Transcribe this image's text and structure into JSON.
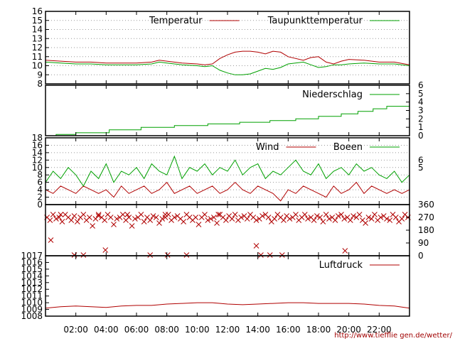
{
  "source_url": "http://www.tiefflie gen.de/wetter/",
  "colors": {
    "red": "#b00000",
    "green": "#00a000",
    "axis": "#000000"
  },
  "x_axis": {
    "range_hours": [
      0,
      24
    ],
    "tick_hours": [
      2,
      4,
      6,
      8,
      10,
      12,
      14,
      16,
      18,
      20,
      22
    ],
    "tick_labels": [
      "02:00",
      "04:00",
      "06:00",
      "08:00",
      "10:00",
      "12:00",
      "14:00",
      "16:00",
      "18:00",
      "20:00",
      "22:00"
    ]
  },
  "chart_data": [
    {
      "id": "temperature",
      "type": "line",
      "ylim": [
        8,
        16
      ],
      "y_ticks": [
        8,
        9,
        10,
        11,
        12,
        13,
        14,
        15,
        16
      ],
      "y_tick_labels": [
        "8",
        "9",
        "10",
        "11",
        "12",
        "13",
        "14",
        "15",
        "16"
      ],
      "grid": true,
      "legend_position": "top-right",
      "series": [
        {
          "name": "Temperatur",
          "color": "red",
          "x": [
            0,
            1,
            2,
            3,
            4,
            5,
            6,
            7,
            7.5,
            8,
            9,
            10,
            10.5,
            11,
            11.5,
            12,
            12.5,
            13,
            13.5,
            14,
            14.5,
            15,
            15.5,
            16,
            17,
            17.5,
            18,
            18.5,
            19,
            19.5,
            20,
            21,
            22,
            23,
            24
          ],
          "y": [
            10.6,
            10.5,
            10.4,
            10.4,
            10.3,
            10.3,
            10.3,
            10.4,
            10.6,
            10.5,
            10.3,
            10.2,
            10.1,
            10.2,
            10.8,
            11.2,
            11.5,
            11.6,
            11.6,
            11.5,
            11.3,
            11.6,
            11.5,
            11.0,
            10.6,
            10.9,
            11.0,
            10.4,
            10.2,
            10.5,
            10.7,
            10.6,
            10.4,
            10.4,
            10.1
          ]
        },
        {
          "name": "Taupunkttemperatur",
          "color": "green",
          "x": [
            0,
            1,
            2,
            3,
            4,
            5,
            6,
            7,
            7.5,
            8,
            9,
            10,
            10.5,
            11,
            11.5,
            12,
            12.5,
            13,
            13.5,
            14,
            14.5,
            15,
            15.5,
            16,
            17,
            17.5,
            18,
            18.5,
            19,
            19.5,
            20,
            21,
            22,
            23,
            24
          ],
          "y": [
            10.4,
            10.3,
            10.2,
            10.2,
            10.1,
            10.1,
            10.1,
            10.2,
            10.4,
            10.3,
            10.1,
            10.0,
            9.9,
            10.0,
            9.5,
            9.2,
            9.0,
            9.0,
            9.1,
            9.4,
            9.7,
            9.6,
            9.8,
            10.2,
            10.4,
            10.1,
            9.8,
            9.9,
            10.1,
            10.1,
            10.2,
            10.3,
            10.2,
            10.2,
            10.0
          ]
        }
      ]
    },
    {
      "id": "precipitation",
      "type": "line",
      "ylim": [
        0,
        6
      ],
      "y_ticks": [
        0,
        1,
        2,
        3,
        4,
        5,
        6
      ],
      "y_tick_labels": [
        "0",
        "1",
        "2",
        "3",
        "4",
        "5",
        "6"
      ],
      "y_axis_side": "right",
      "legend_position": "top-right",
      "series": [
        {
          "name": "Niederschlag",
          "color": "green",
          "x": [
            0,
            0.7,
            0.7,
            2,
            2,
            4.2,
            4.2,
            6.3,
            6.3,
            8.5,
            8.5,
            10.7,
            10.7,
            12.8,
            12.8,
            14.8,
            14.8,
            16.5,
            16.5,
            18.0,
            18.0,
            19.5,
            19.5,
            20.6,
            20.6,
            21.6,
            21.6,
            22.5,
            22.5,
            24
          ],
          "y": [
            0,
            0,
            0.15,
            0.15,
            0.35,
            0.35,
            0.7,
            0.7,
            1.0,
            1.0,
            1.2,
            1.2,
            1.4,
            1.4,
            1.6,
            1.6,
            1.8,
            1.8,
            2.0,
            2.0,
            2.3,
            2.3,
            2.6,
            2.6,
            2.9,
            2.9,
            3.2,
            3.2,
            3.5,
            3.5
          ]
        }
      ]
    },
    {
      "id": "wind",
      "type": "line",
      "ylim": [
        0,
        18
      ],
      "y_ticks": [
        0,
        2,
        4,
        6,
        8,
        10,
        12,
        14,
        16,
        18
      ],
      "y_tick_labels": [
        "0",
        "2",
        "4",
        "6",
        "8",
        "10",
        "12",
        "14",
        "16",
        "18"
      ],
      "right_y_tick_values": [
        5,
        6
      ],
      "right_y_tick_labels": [
        "5",
        "6"
      ],
      "grid": true,
      "legend_position": "top-right",
      "series": [
        {
          "name": "Wind",
          "color": "red",
          "x": [
            0,
            0.5,
            1,
            1.5,
            2,
            2.5,
            3,
            3.5,
            4,
            4.5,
            5,
            5.5,
            6,
            6.5,
            7,
            7.5,
            8,
            8.5,
            9,
            9.5,
            10,
            10.5,
            11,
            11.5,
            12,
            12.5,
            13,
            13.5,
            14,
            14.5,
            15,
            15.5,
            16,
            16.5,
            17,
            17.5,
            18,
            18.5,
            19,
            19.5,
            20,
            20.5,
            21,
            21.5,
            22,
            22.5,
            23,
            23.5,
            24
          ],
          "y": [
            4,
            3,
            5,
            4,
            3,
            5,
            4,
            3,
            4,
            2,
            5,
            3,
            4,
            5,
            3,
            4,
            6,
            3,
            4,
            5,
            3,
            4,
            5,
            3,
            4,
            6,
            4,
            3,
            5,
            4,
            3,
            1,
            4,
            3,
            5,
            4,
            3,
            2,
            5,
            3,
            4,
            6,
            3,
            5,
            4,
            3,
            4,
            3,
            4
          ]
        },
        {
          "name": "Boeen",
          "color": "green",
          "x": [
            0,
            0.5,
            1,
            1.5,
            2,
            2.5,
            3,
            3.5,
            4,
            4.5,
            5,
            5.5,
            6,
            6.5,
            7,
            7.5,
            8,
            8.5,
            9,
            9.5,
            10,
            10.5,
            11,
            11.5,
            12,
            12.5,
            13,
            13.5,
            14,
            14.5,
            15,
            15.5,
            16,
            16.5,
            17,
            17.5,
            18,
            18.5,
            19,
            19.5,
            20,
            20.5,
            21,
            21.5,
            22,
            22.5,
            23,
            23.5,
            24
          ],
          "y": [
            6,
            9,
            7,
            10,
            8,
            5,
            9,
            7,
            11,
            6,
            9,
            8,
            10,
            7,
            11,
            9,
            8,
            13,
            7,
            10,
            9,
            11,
            8,
            10,
            9,
            12,
            8,
            10,
            11,
            7,
            9,
            8,
            10,
            12,
            9,
            8,
            11,
            7,
            9,
            10,
            8,
            11,
            9,
            10,
            8,
            7,
            9,
            6,
            8
          ]
        }
      ]
    },
    {
      "id": "wind_direction",
      "type": "scatter",
      "ylim": [
        0,
        360
      ],
      "y_ticks": [
        0,
        90,
        180,
        270,
        360
      ],
      "y_tick_labels": [
        "0",
        "90",
        "180",
        "270",
        "360"
      ],
      "y_axis_side": "right",
      "marker": "x",
      "series": [
        {
          "name": "",
          "color": "red",
          "x": [
            0.1,
            0.3,
            0.5,
            0.7,
            0.9,
            1.1,
            1.3,
            1.5,
            1.7,
            1.9,
            2.1,
            2.3,
            2.5,
            2.7,
            2.9,
            3.1,
            3.3,
            3.5,
            3.7,
            3.9,
            4.1,
            4.3,
            4.5,
            4.7,
            4.9,
            5.1,
            5.3,
            5.5,
            5.7,
            5.9,
            6.1,
            6.3,
            6.5,
            6.7,
            6.9,
            7.1,
            7.3,
            7.5,
            7.7,
            7.9,
            8.1,
            8.3,
            8.5,
            8.7,
            8.9,
            9.1,
            9.3,
            9.5,
            9.7,
            9.9,
            10.1,
            10.3,
            10.5,
            10.7,
            10.9,
            11.1,
            11.3,
            11.5,
            11.7,
            11.9,
            12.1,
            12.3,
            12.5,
            12.7,
            12.9,
            13.1,
            13.3,
            13.5,
            13.7,
            13.9,
            14.1,
            14.3,
            14.5,
            14.7,
            14.9,
            15.1,
            15.3,
            15.5,
            15.7,
            15.9,
            16.1,
            16.3,
            16.5,
            16.7,
            16.9,
            17.1,
            17.3,
            17.5,
            17.7,
            17.9,
            18.1,
            18.3,
            18.5,
            18.7,
            18.9,
            19.1,
            19.3,
            19.5,
            19.7,
            19.9,
            20.1,
            20.3,
            20.5,
            20.7,
            20.9,
            21.1,
            21.3,
            21.5,
            21.7,
            21.9,
            22.1,
            22.3,
            22.5,
            22.7,
            22.9,
            23.1,
            23.3,
            23.5,
            23.7,
            23.9,
            0.35,
            1.9,
            2.5,
            3.95,
            6.9,
            8.05,
            9.3,
            13.9,
            14.2,
            14.8,
            15.6,
            19.75,
            1.0,
            3.5,
            5.4,
            7.9,
            11.4
          ],
          "y": [
            270,
            250,
            290,
            260,
            270,
            240,
            290,
            270,
            250,
            280,
            240,
            270,
            290,
            250,
            270,
            210,
            260,
            280,
            270,
            250,
            290,
            270,
            220,
            260,
            270,
            290,
            250,
            270,
            210,
            260,
            270,
            290,
            240,
            270,
            250,
            280,
            270,
            230,
            260,
            270,
            290,
            250,
            270,
            280,
            260,
            240,
            290,
            270,
            250,
            270,
            220,
            270,
            290,
            250,
            260,
            270,
            230,
            290,
            270,
            250,
            280,
            260,
            290,
            250,
            270,
            280,
            260,
            290,
            270,
            250,
            260,
            280,
            290,
            270,
            240,
            260,
            290,
            270,
            250,
            280,
            260,
            270,
            290,
            250,
            270,
            290,
            260,
            270,
            250,
            280,
            270,
            240,
            290,
            260,
            270,
            250,
            280,
            290,
            260,
            270,
            250,
            280,
            270,
            290,
            250,
            230,
            270,
            260,
            290,
            250,
            270,
            280,
            260,
            250,
            290,
            270,
            240,
            260,
            290,
            270,
            110,
            5,
            5,
            40,
            5,
            5,
            5,
            70,
            5,
            5,
            5,
            35,
            290,
            290,
            290,
            290,
            290
          ]
        }
      ]
    },
    {
      "id": "pressure",
      "type": "line",
      "ylim": [
        1008,
        1017
      ],
      "y_ticks": [
        1008,
        1009,
        1010,
        1011,
        1012,
        1013,
        1014,
        1015,
        1016,
        1017
      ],
      "y_tick_labels": [
        "1008",
        "1009",
        "1010",
        "1011",
        "1012",
        "1013",
        "1014",
        "1015",
        "1016",
        "1017"
      ],
      "legend_position": "top-right",
      "series": [
        {
          "name": "Luftdruck",
          "color": "red",
          "x": [
            0,
            1,
            2,
            3,
            4,
            5,
            6,
            7,
            8,
            9,
            10,
            11,
            12,
            13,
            14,
            15,
            16,
            17,
            18,
            19,
            20,
            21,
            22,
            23,
            24
          ],
          "y": [
            1009.2,
            1009.4,
            1009.5,
            1009.4,
            1009.3,
            1009.5,
            1009.6,
            1009.6,
            1009.8,
            1009.9,
            1010.0,
            1010.0,
            1009.8,
            1009.7,
            1009.8,
            1009.9,
            1010.0,
            1010.0,
            1009.9,
            1009.9,
            1009.9,
            1009.8,
            1009.6,
            1009.5,
            1009.2
          ]
        }
      ]
    }
  ]
}
